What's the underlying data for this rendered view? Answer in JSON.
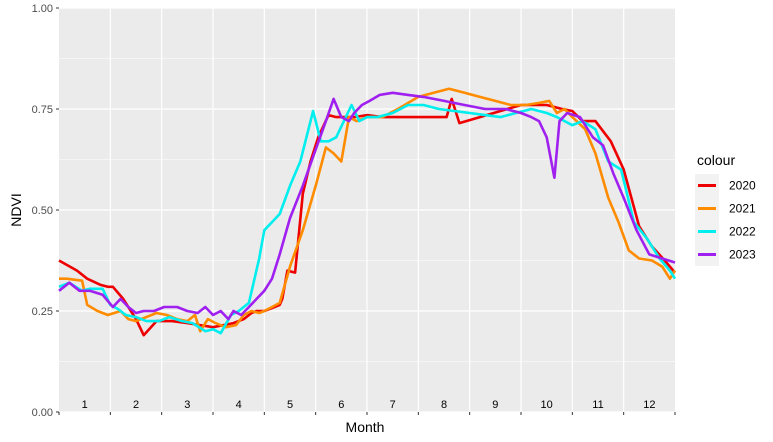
{
  "chart_data": {
    "type": "line",
    "xlabel": "Month",
    "ylabel": "NDVI",
    "ylim": [
      0,
      1
    ],
    "y_ticks": [
      "0.00",
      "0.25",
      "0.50",
      "0.75",
      "1.00"
    ],
    "y_tick_values": [
      0,
      0.25,
      0.5,
      0.75,
      1.0
    ],
    "categories": [
      "1",
      "2",
      "3",
      "4",
      "5",
      "6",
      "7",
      "8",
      "9",
      "10",
      "11",
      "12"
    ],
    "xlim": [
      0,
      12
    ],
    "grid": true,
    "legend": {
      "title": "colour",
      "position": "right"
    },
    "series": [
      {
        "name": "2020",
        "color": "#ee0000",
        "x": [
          0.0,
          0.35,
          0.55,
          0.8,
          0.95,
          1.05,
          1.25,
          1.5,
          1.65,
          1.9,
          2.2,
          2.5,
          2.75,
          3.0,
          3.2,
          3.4,
          3.6,
          3.75,
          3.85,
          4.0,
          4.1,
          4.2,
          4.3,
          4.35,
          4.45,
          4.6,
          4.75,
          4.9,
          5.05,
          5.25,
          5.4,
          5.55,
          5.75,
          6.0,
          6.3,
          6.6,
          7.0,
          7.3,
          7.55,
          7.65,
          7.8,
          8.2,
          8.6,
          9.0,
          9.5,
          9.8,
          10.0,
          10.2,
          10.45,
          10.75,
          11.0,
          11.3,
          11.55,
          11.8,
          12.0
        ],
        "y": [
          0.375,
          0.35,
          0.33,
          0.315,
          0.31,
          0.31,
          0.28,
          0.23,
          0.19,
          0.225,
          0.225,
          0.22,
          0.215,
          0.21,
          0.215,
          0.22,
          0.23,
          0.245,
          0.25,
          0.25,
          0.255,
          0.26,
          0.265,
          0.28,
          0.35,
          0.345,
          0.54,
          0.62,
          0.68,
          0.735,
          0.73,
          0.73,
          0.73,
          0.735,
          0.73,
          0.73,
          0.73,
          0.73,
          0.73,
          0.775,
          0.715,
          0.73,
          0.745,
          0.76,
          0.76,
          0.75,
          0.745,
          0.72,
          0.72,
          0.67,
          0.6,
          0.46,
          0.41,
          0.375,
          0.345
        ]
      },
      {
        "name": "2021",
        "color": "#ff8c00",
        "x": [
          0.0,
          0.15,
          0.45,
          0.55,
          0.75,
          0.95,
          1.2,
          1.35,
          1.5,
          1.7,
          1.9,
          2.1,
          2.3,
          2.5,
          2.65,
          2.75,
          2.9,
          3.05,
          3.25,
          3.45,
          3.6,
          3.75,
          3.9,
          4.0,
          4.15,
          4.3,
          4.5,
          4.75,
          5.0,
          5.2,
          5.35,
          5.5,
          5.65,
          5.8,
          6.0,
          6.3,
          6.6,
          7.0,
          7.3,
          7.6,
          7.9,
          8.2,
          8.5,
          8.8,
          9.1,
          9.35,
          9.55,
          9.7,
          9.85,
          10.0,
          10.25,
          10.45,
          10.7,
          10.9,
          11.1,
          11.3,
          11.55,
          11.75,
          11.9,
          12.0
        ],
        "y": [
          0.33,
          0.33,
          0.325,
          0.265,
          0.25,
          0.24,
          0.25,
          0.23,
          0.225,
          0.235,
          0.245,
          0.24,
          0.23,
          0.225,
          0.24,
          0.2,
          0.23,
          0.22,
          0.21,
          0.215,
          0.24,
          0.25,
          0.245,
          0.25,
          0.26,
          0.27,
          0.36,
          0.45,
          0.56,
          0.655,
          0.64,
          0.62,
          0.73,
          0.72,
          0.73,
          0.73,
          0.75,
          0.78,
          0.79,
          0.8,
          0.79,
          0.78,
          0.77,
          0.76,
          0.76,
          0.765,
          0.77,
          0.74,
          0.75,
          0.73,
          0.7,
          0.64,
          0.53,
          0.47,
          0.4,
          0.38,
          0.375,
          0.36,
          0.33,
          0.35
        ]
      },
      {
        "name": "2022",
        "color": "#00eeee",
        "x": [
          0.0,
          0.2,
          0.45,
          0.6,
          0.85,
          1.0,
          1.15,
          1.3,
          1.5,
          1.7,
          1.95,
          2.15,
          2.4,
          2.6,
          2.85,
          3.0,
          3.15,
          3.35,
          3.5,
          3.7,
          3.9,
          4.0,
          4.15,
          4.3,
          4.5,
          4.7,
          4.95,
          5.1,
          5.25,
          5.4,
          5.55,
          5.7,
          5.85,
          6.0,
          6.2,
          6.5,
          6.8,
          7.1,
          7.4,
          7.7,
          8.0,
          8.3,
          8.6,
          8.9,
          9.2,
          9.5,
          9.7,
          9.85,
          10.0,
          10.2,
          10.45,
          10.7,
          10.95,
          11.2,
          11.45,
          11.7,
          11.9,
          12.0
        ],
        "y": [
          0.31,
          0.32,
          0.3,
          0.305,
          0.305,
          0.265,
          0.255,
          0.24,
          0.235,
          0.225,
          0.225,
          0.235,
          0.225,
          0.22,
          0.2,
          0.205,
          0.195,
          0.24,
          0.25,
          0.27,
          0.38,
          0.45,
          0.47,
          0.49,
          0.56,
          0.62,
          0.745,
          0.67,
          0.67,
          0.68,
          0.72,
          0.76,
          0.72,
          0.73,
          0.73,
          0.74,
          0.76,
          0.76,
          0.75,
          0.745,
          0.74,
          0.735,
          0.73,
          0.74,
          0.75,
          0.74,
          0.73,
          0.72,
          0.71,
          0.72,
          0.7,
          0.62,
          0.6,
          0.47,
          0.43,
          0.38,
          0.35,
          0.33
        ]
      },
      {
        "name": "2023",
        "color": "#a020f0",
        "x": [
          0.0,
          0.2,
          0.4,
          0.6,
          0.85,
          1.05,
          1.2,
          1.35,
          1.5,
          1.65,
          1.85,
          2.05,
          2.3,
          2.5,
          2.7,
          2.85,
          3.0,
          3.15,
          3.3,
          3.4,
          3.55,
          3.7,
          3.85,
          4.0,
          4.15,
          4.3,
          4.5,
          4.75,
          5.0,
          5.2,
          5.35,
          5.5,
          5.65,
          5.75,
          5.9,
          6.05,
          6.25,
          6.5,
          6.8,
          7.1,
          7.5,
          7.9,
          8.3,
          8.7,
          9.0,
          9.2,
          9.35,
          9.5,
          9.65,
          9.75,
          9.9,
          10.15,
          10.4,
          10.6,
          10.8,
          11.0,
          11.25,
          11.5,
          11.75,
          12.0
        ],
        "y": [
          0.3,
          0.32,
          0.3,
          0.3,
          0.29,
          0.26,
          0.28,
          0.26,
          0.245,
          0.25,
          0.25,
          0.26,
          0.26,
          0.25,
          0.245,
          0.26,
          0.24,
          0.25,
          0.23,
          0.25,
          0.24,
          0.26,
          0.28,
          0.3,
          0.33,
          0.39,
          0.48,
          0.56,
          0.65,
          0.72,
          0.775,
          0.73,
          0.72,
          0.74,
          0.76,
          0.77,
          0.785,
          0.79,
          0.785,
          0.78,
          0.77,
          0.76,
          0.75,
          0.75,
          0.74,
          0.73,
          0.72,
          0.68,
          0.58,
          0.72,
          0.74,
          0.73,
          0.68,
          0.66,
          0.59,
          0.53,
          0.45,
          0.39,
          0.38,
          0.37
        ]
      }
    ]
  }
}
